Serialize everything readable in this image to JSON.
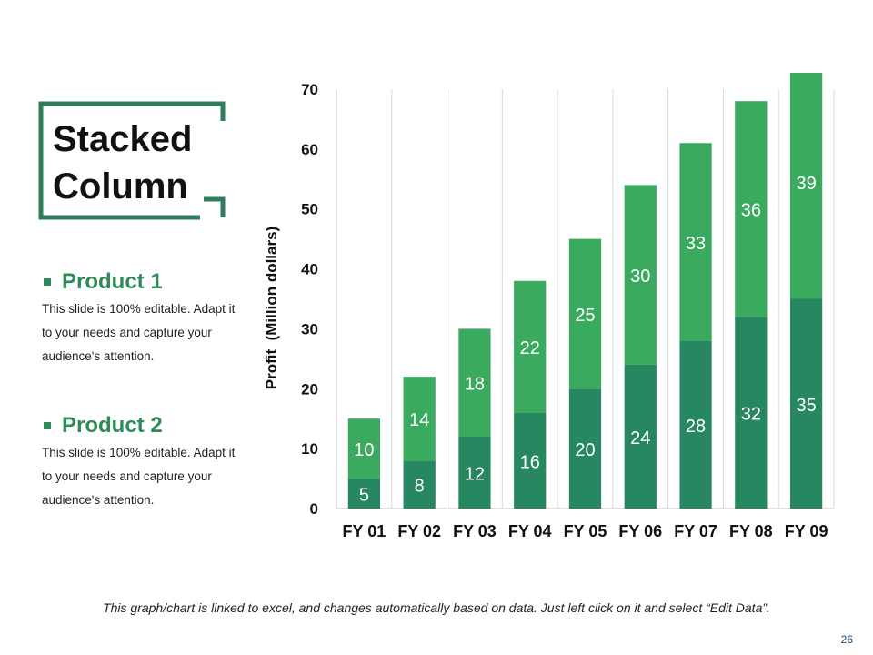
{
  "slide": {
    "title": "Stacked\nColumn",
    "products": [
      {
        "name": "Product 1",
        "description": "This slide is 100% editable. Adapt it to your needs and capture your audience's attention."
      },
      {
        "name": "Product 2",
        "description": "This slide is 100% editable. Adapt it to your needs and capture your audience's attention."
      }
    ],
    "footer_note": "This graph/chart is linked to excel, and changes automatically based on data. Just left click on it and select “Edit Data”.",
    "page_number": "26"
  },
  "colors": {
    "accent": "#2e8b57",
    "series_bottom": "#268760",
    "series_top": "#3aaa5f",
    "title_frame": "#2e7d5b"
  },
  "chart_data": {
    "type": "bar",
    "stacked": true,
    "categories": [
      "FY 01",
      "FY 02",
      "FY 03",
      "FY 04",
      "FY 05",
      "FY 06",
      "FY 07",
      "FY 08",
      "FY 09"
    ],
    "series": [
      {
        "values": [
          5,
          8,
          12,
          16,
          20,
          24,
          28,
          32,
          35
        ]
      },
      {
        "values": [
          10,
          14,
          18,
          22,
          25,
          30,
          33,
          36,
          39
        ]
      }
    ],
    "ylabel": "Profit  (Million dollars)",
    "xlabel": "",
    "ylim": [
      0,
      70
    ],
    "yticks": [
      0,
      10,
      20,
      30,
      40,
      50,
      60,
      70
    ],
    "grid": "vertical",
    "legend": "none"
  }
}
